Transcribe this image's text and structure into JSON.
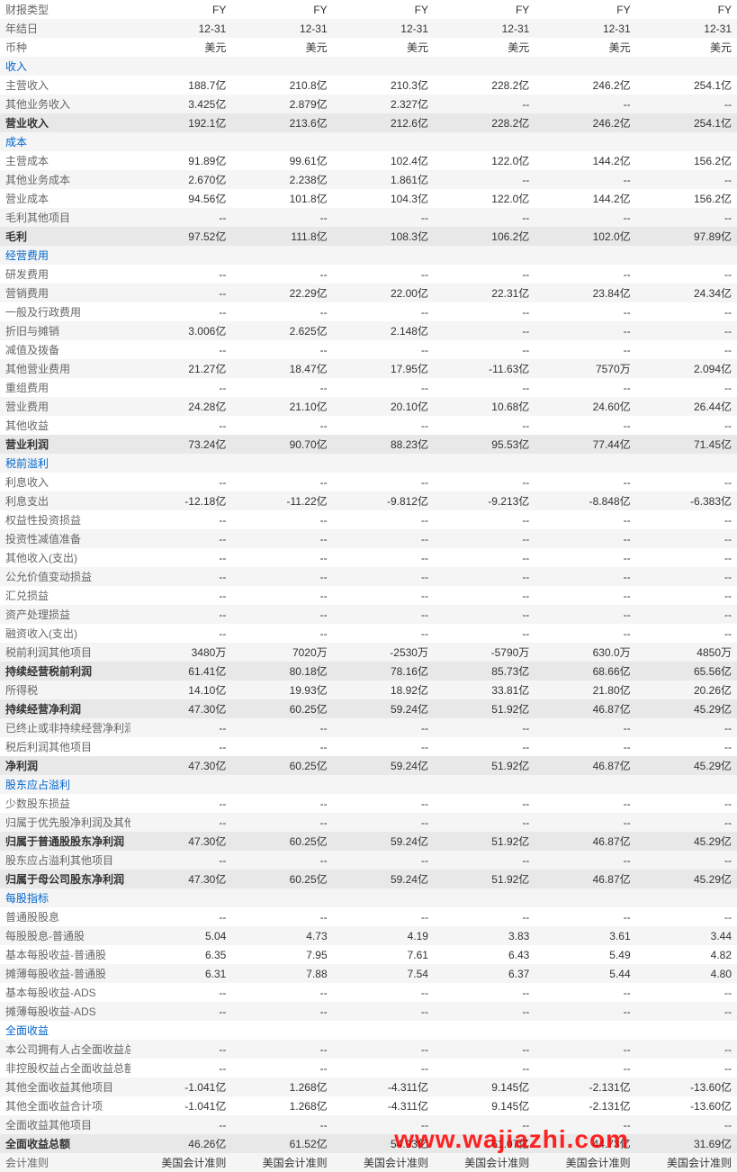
{
  "watermark": "www.wajiazhi.com",
  "rows": [
    {
      "label": "财报类型",
      "vals": [
        "FY",
        "FY",
        "FY",
        "FY",
        "FY",
        "FY"
      ],
      "cls": ""
    },
    {
      "label": "年结日",
      "vals": [
        "12-31",
        "12-31",
        "12-31",
        "12-31",
        "12-31",
        "12-31"
      ],
      "cls": "alt"
    },
    {
      "label": "币种",
      "vals": [
        "美元",
        "美元",
        "美元",
        "美元",
        "美元",
        "美元"
      ],
      "cls": ""
    },
    {
      "label": "收入",
      "vals": [
        "",
        "",
        "",
        "",
        "",
        ""
      ],
      "cls": "section alt"
    },
    {
      "label": "主营收入",
      "vals": [
        "188.7亿",
        "210.8亿",
        "210.3亿",
        "228.2亿",
        "246.2亿",
        "254.1亿"
      ],
      "cls": ""
    },
    {
      "label": "其他业务收入",
      "vals": [
        "3.425亿",
        "2.879亿",
        "2.327亿",
        "--",
        "--",
        "--"
      ],
      "cls": "alt"
    },
    {
      "label": "营业收入",
      "vals": [
        "192.1亿",
        "213.6亿",
        "212.6亿",
        "228.2亿",
        "246.2亿",
        "254.1亿"
      ],
      "cls": "highlight"
    },
    {
      "label": "成本",
      "vals": [
        "",
        "",
        "",
        "",
        "",
        ""
      ],
      "cls": "section alt"
    },
    {
      "label": "主营成本",
      "vals": [
        "91.89亿",
        "99.61亿",
        "102.4亿",
        "122.0亿",
        "144.2亿",
        "156.2亿"
      ],
      "cls": ""
    },
    {
      "label": "其他业务成本",
      "vals": [
        "2.670亿",
        "2.238亿",
        "1.861亿",
        "--",
        "--",
        "--"
      ],
      "cls": "alt"
    },
    {
      "label": "营业成本",
      "vals": [
        "94.56亿",
        "101.8亿",
        "104.3亿",
        "122.0亿",
        "144.2亿",
        "156.2亿"
      ],
      "cls": ""
    },
    {
      "label": "毛利其他项目",
      "vals": [
        "--",
        "--",
        "--",
        "--",
        "--",
        "--"
      ],
      "cls": "alt"
    },
    {
      "label": "毛利",
      "vals": [
        "97.52亿",
        "111.8亿",
        "108.3亿",
        "106.2亿",
        "102.0亿",
        "97.89亿"
      ],
      "cls": "highlight"
    },
    {
      "label": "经营费用",
      "vals": [
        "",
        "",
        "",
        "",
        "",
        ""
      ],
      "cls": "section alt"
    },
    {
      "label": "研发费用",
      "vals": [
        "--",
        "--",
        "--",
        "--",
        "--",
        "--"
      ],
      "cls": ""
    },
    {
      "label": "营销费用",
      "vals": [
        "--",
        "22.29亿",
        "22.00亿",
        "22.31亿",
        "23.84亿",
        "24.34亿"
      ],
      "cls": "alt"
    },
    {
      "label": "一般及行政费用",
      "vals": [
        "--",
        "--",
        "--",
        "--",
        "--",
        "--"
      ],
      "cls": ""
    },
    {
      "label": "折旧与摊销",
      "vals": [
        "3.006亿",
        "2.625亿",
        "2.148亿",
        "--",
        "--",
        "--"
      ],
      "cls": "alt"
    },
    {
      "label": "减值及拨备",
      "vals": [
        "--",
        "--",
        "--",
        "--",
        "--",
        "--"
      ],
      "cls": ""
    },
    {
      "label": "其他营业费用",
      "vals": [
        "21.27亿",
        "18.47亿",
        "17.95亿",
        "-11.63亿",
        "7570万",
        "2.094亿"
      ],
      "cls": "alt"
    },
    {
      "label": "重组费用",
      "vals": [
        "--",
        "--",
        "--",
        "--",
        "--",
        "--"
      ],
      "cls": ""
    },
    {
      "label": "营业费用",
      "vals": [
        "24.28亿",
        "21.10亿",
        "20.10亿",
        "10.68亿",
        "24.60亿",
        "26.44亿"
      ],
      "cls": "alt"
    },
    {
      "label": "其他收益",
      "vals": [
        "--",
        "--",
        "--",
        "--",
        "--",
        "--"
      ],
      "cls": ""
    },
    {
      "label": "营业利润",
      "vals": [
        "73.24亿",
        "90.70亿",
        "88.23亿",
        "95.53亿",
        "77.44亿",
        "71.45亿"
      ],
      "cls": "highlight"
    },
    {
      "label": "税前溢利",
      "vals": [
        "",
        "",
        "",
        "",
        "",
        ""
      ],
      "cls": "section alt"
    },
    {
      "label": "利息收入",
      "vals": [
        "--",
        "--",
        "--",
        "--",
        "--",
        "--"
      ],
      "cls": ""
    },
    {
      "label": "利息支出",
      "vals": [
        "-12.18亿",
        "-11.22亿",
        "-9.812亿",
        "-9.213亿",
        "-8.848亿",
        "-6.383亿"
      ],
      "cls": "alt"
    },
    {
      "label": "权益性投资损益",
      "vals": [
        "--",
        "--",
        "--",
        "--",
        "--",
        "--"
      ],
      "cls": ""
    },
    {
      "label": "投资性减值准备",
      "vals": [
        "--",
        "--",
        "--",
        "--",
        "--",
        "--"
      ],
      "cls": "alt"
    },
    {
      "label": "其他收入(支出)",
      "vals": [
        "--",
        "--",
        "--",
        "--",
        "--",
        "--"
      ],
      "cls": ""
    },
    {
      "label": "公允价值变动损益",
      "vals": [
        "--",
        "--",
        "--",
        "--",
        "--",
        "--"
      ],
      "cls": "alt"
    },
    {
      "label": "汇兑损益",
      "vals": [
        "--",
        "--",
        "--",
        "--",
        "--",
        "--"
      ],
      "cls": ""
    },
    {
      "label": "资产处理损益",
      "vals": [
        "--",
        "--",
        "--",
        "--",
        "--",
        "--"
      ],
      "cls": "alt"
    },
    {
      "label": "融资收入(支出)",
      "vals": [
        "--",
        "--",
        "--",
        "--",
        "--",
        "--"
      ],
      "cls": ""
    },
    {
      "label": "税前利润其他项目",
      "vals": [
        "3480万",
        "7020万",
        "-2530万",
        "-5790万",
        "630.0万",
        "4850万"
      ],
      "cls": "alt"
    },
    {
      "label": "持续经营税前利润",
      "vals": [
        "61.41亿",
        "80.18亿",
        "78.16亿",
        "85.73亿",
        "68.66亿",
        "65.56亿"
      ],
      "cls": "highlight"
    },
    {
      "label": "所得税",
      "vals": [
        "14.10亿",
        "19.93亿",
        "18.92亿",
        "33.81亿",
        "21.80亿",
        "20.26亿"
      ],
      "cls": "alt"
    },
    {
      "label": "持续经营净利润",
      "vals": [
        "47.30亿",
        "60.25亿",
        "59.24亿",
        "51.92亿",
        "46.87亿",
        "45.29亿"
      ],
      "cls": "highlight"
    },
    {
      "label": "已终止或非持续经营净利润",
      "vals": [
        "--",
        "--",
        "--",
        "--",
        "--",
        "--"
      ],
      "cls": "alt"
    },
    {
      "label": "税后利润其他项目",
      "vals": [
        "--",
        "--",
        "--",
        "--",
        "--",
        "--"
      ],
      "cls": ""
    },
    {
      "label": "净利润",
      "vals": [
        "47.30亿",
        "60.25亿",
        "59.24亿",
        "51.92亿",
        "46.87亿",
        "45.29亿"
      ],
      "cls": "highlight"
    },
    {
      "label": "股东应占溢利",
      "vals": [
        "",
        "",
        "",
        "",
        "",
        ""
      ],
      "cls": "section alt"
    },
    {
      "label": "少数股东损益",
      "vals": [
        "--",
        "--",
        "--",
        "--",
        "--",
        "--"
      ],
      "cls": ""
    },
    {
      "label": "归属于优先股净利润及其他项",
      "vals": [
        "--",
        "--",
        "--",
        "--",
        "--",
        "--"
      ],
      "cls": "alt"
    },
    {
      "label": "归属于普通股股东净利润",
      "vals": [
        "47.30亿",
        "60.25亿",
        "59.24亿",
        "51.92亿",
        "46.87亿",
        "45.29亿"
      ],
      "cls": "highlight"
    },
    {
      "label": "股东应占溢利其他项目",
      "vals": [
        "--",
        "--",
        "--",
        "--",
        "--",
        "--"
      ],
      "cls": "alt"
    },
    {
      "label": "归属于母公司股东净利润",
      "vals": [
        "47.30亿",
        "60.25亿",
        "59.24亿",
        "51.92亿",
        "46.87亿",
        "45.29亿"
      ],
      "cls": "highlight"
    },
    {
      "label": "每股指标",
      "vals": [
        "",
        "",
        "",
        "",
        "",
        ""
      ],
      "cls": "section alt"
    },
    {
      "label": "普通股股息",
      "vals": [
        "--",
        "--",
        "--",
        "--",
        "--",
        "--"
      ],
      "cls": ""
    },
    {
      "label": "每股股息-普通股",
      "vals": [
        "5.04",
        "4.73",
        "4.19",
        "3.83",
        "3.61",
        "3.44"
      ],
      "cls": "alt"
    },
    {
      "label": "基本每股收益-普通股",
      "vals": [
        "6.35",
        "7.95",
        "7.61",
        "6.43",
        "5.49",
        "4.82"
      ],
      "cls": ""
    },
    {
      "label": "摊薄每股收益-普通股",
      "vals": [
        "6.31",
        "7.88",
        "7.54",
        "6.37",
        "5.44",
        "4.80"
      ],
      "cls": "alt"
    },
    {
      "label": "基本每股收益-ADS",
      "vals": [
        "--",
        "--",
        "--",
        "--",
        "--",
        "--"
      ],
      "cls": ""
    },
    {
      "label": "摊薄每股收益-ADS",
      "vals": [
        "--",
        "--",
        "--",
        "--",
        "--",
        "--"
      ],
      "cls": "alt"
    },
    {
      "label": "全面收益",
      "vals": [
        "",
        "",
        "",
        "",
        "",
        ""
      ],
      "cls": "section"
    },
    {
      "label": "本公司拥有人占全面收益总额",
      "vals": [
        "--",
        "--",
        "--",
        "--",
        "--",
        "--"
      ],
      "cls": "alt"
    },
    {
      "label": "非控股权益占全面收益总额",
      "vals": [
        "--",
        "--",
        "--",
        "--",
        "--",
        "--"
      ],
      "cls": ""
    },
    {
      "label": "其他全面收益其他项目",
      "vals": [
        "-1.041亿",
        "1.268亿",
        "-4.311亿",
        "9.145亿",
        "-2.131亿",
        "-13.60亿"
      ],
      "cls": "alt"
    },
    {
      "label": "其他全面收益合计项",
      "vals": [
        "-1.041亿",
        "1.268亿",
        "-4.311亿",
        "9.145亿",
        "-2.131亿",
        "-13.60亿"
      ],
      "cls": ""
    },
    {
      "label": "全面收益其他项目",
      "vals": [
        "--",
        "--",
        "--",
        "--",
        "--",
        "--"
      ],
      "cls": "alt"
    },
    {
      "label": "全面收益总额",
      "vals": [
        "46.26亿",
        "61.52亿",
        "54.93亿",
        "61.07亿",
        "44.73亿",
        "31.69亿"
      ],
      "cls": "highlight"
    },
    {
      "label": "会计准则",
      "vals": [
        "美国会计准则",
        "美国会计准则",
        "美国会计准则",
        "美国会计准则",
        "美国会计准则",
        "美国会计准则"
      ],
      "cls": "alt"
    }
  ]
}
